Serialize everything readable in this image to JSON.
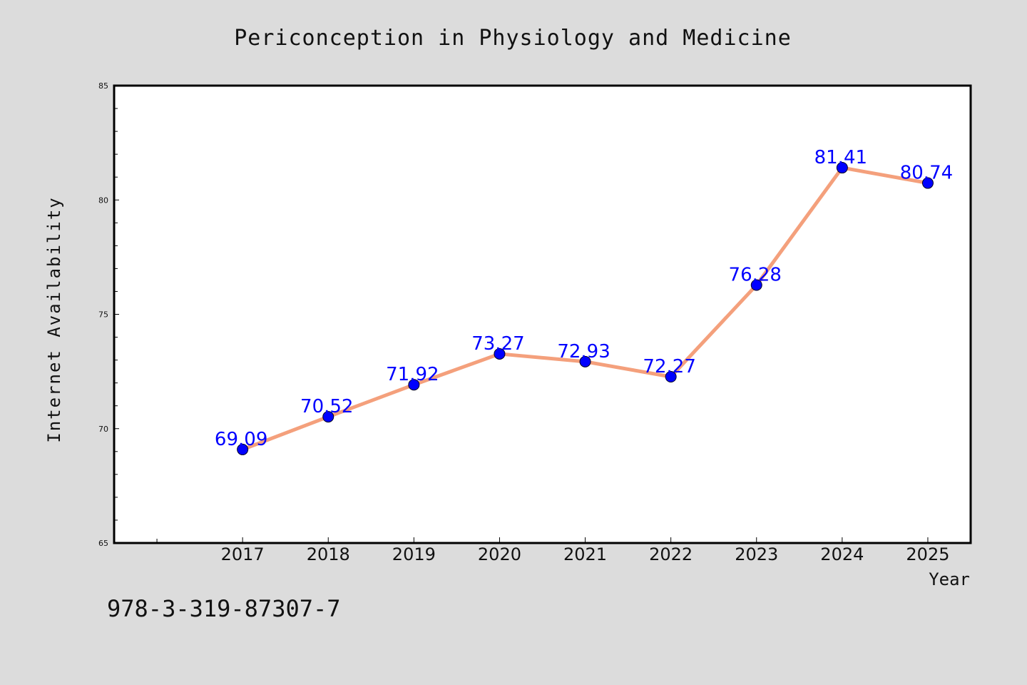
{
  "footer_text": "978-3-319-87307-7",
  "colors": {
    "background": "#dcdcdc",
    "plot_background": "#ffffff",
    "line": "#f4a07c",
    "marker": "#0000ff",
    "label": "#0000ff"
  },
  "chart_data": {
    "type": "line",
    "title": "Periconception in Physiology and Medicine",
    "xlabel": "Year",
    "ylabel": "Internet Availability",
    "x": [
      "2017",
      "2018",
      "2019",
      "2020",
      "2021",
      "2022",
      "2023",
      "2024",
      "2025"
    ],
    "series": [
      {
        "values": [
          69.09,
          70.52,
          71.92,
          73.27,
          72.93,
          72.27,
          76.28,
          81.41,
          80.74
        ],
        "data_labels": [
          "69.09",
          "70.52",
          "71.92",
          "73.27",
          "72.93",
          "72.27",
          "76.28",
          "81.41",
          "80.74"
        ]
      }
    ],
    "ylim": [
      65,
      85
    ],
    "yticks": [
      65,
      70,
      75,
      80,
      85
    ],
    "ytick_labels": [
      "65",
      "70",
      "75",
      "80",
      "85"
    ],
    "x_domain": [
      2015.5,
      2025.5
    ],
    "grid": false,
    "legend": "none"
  }
}
